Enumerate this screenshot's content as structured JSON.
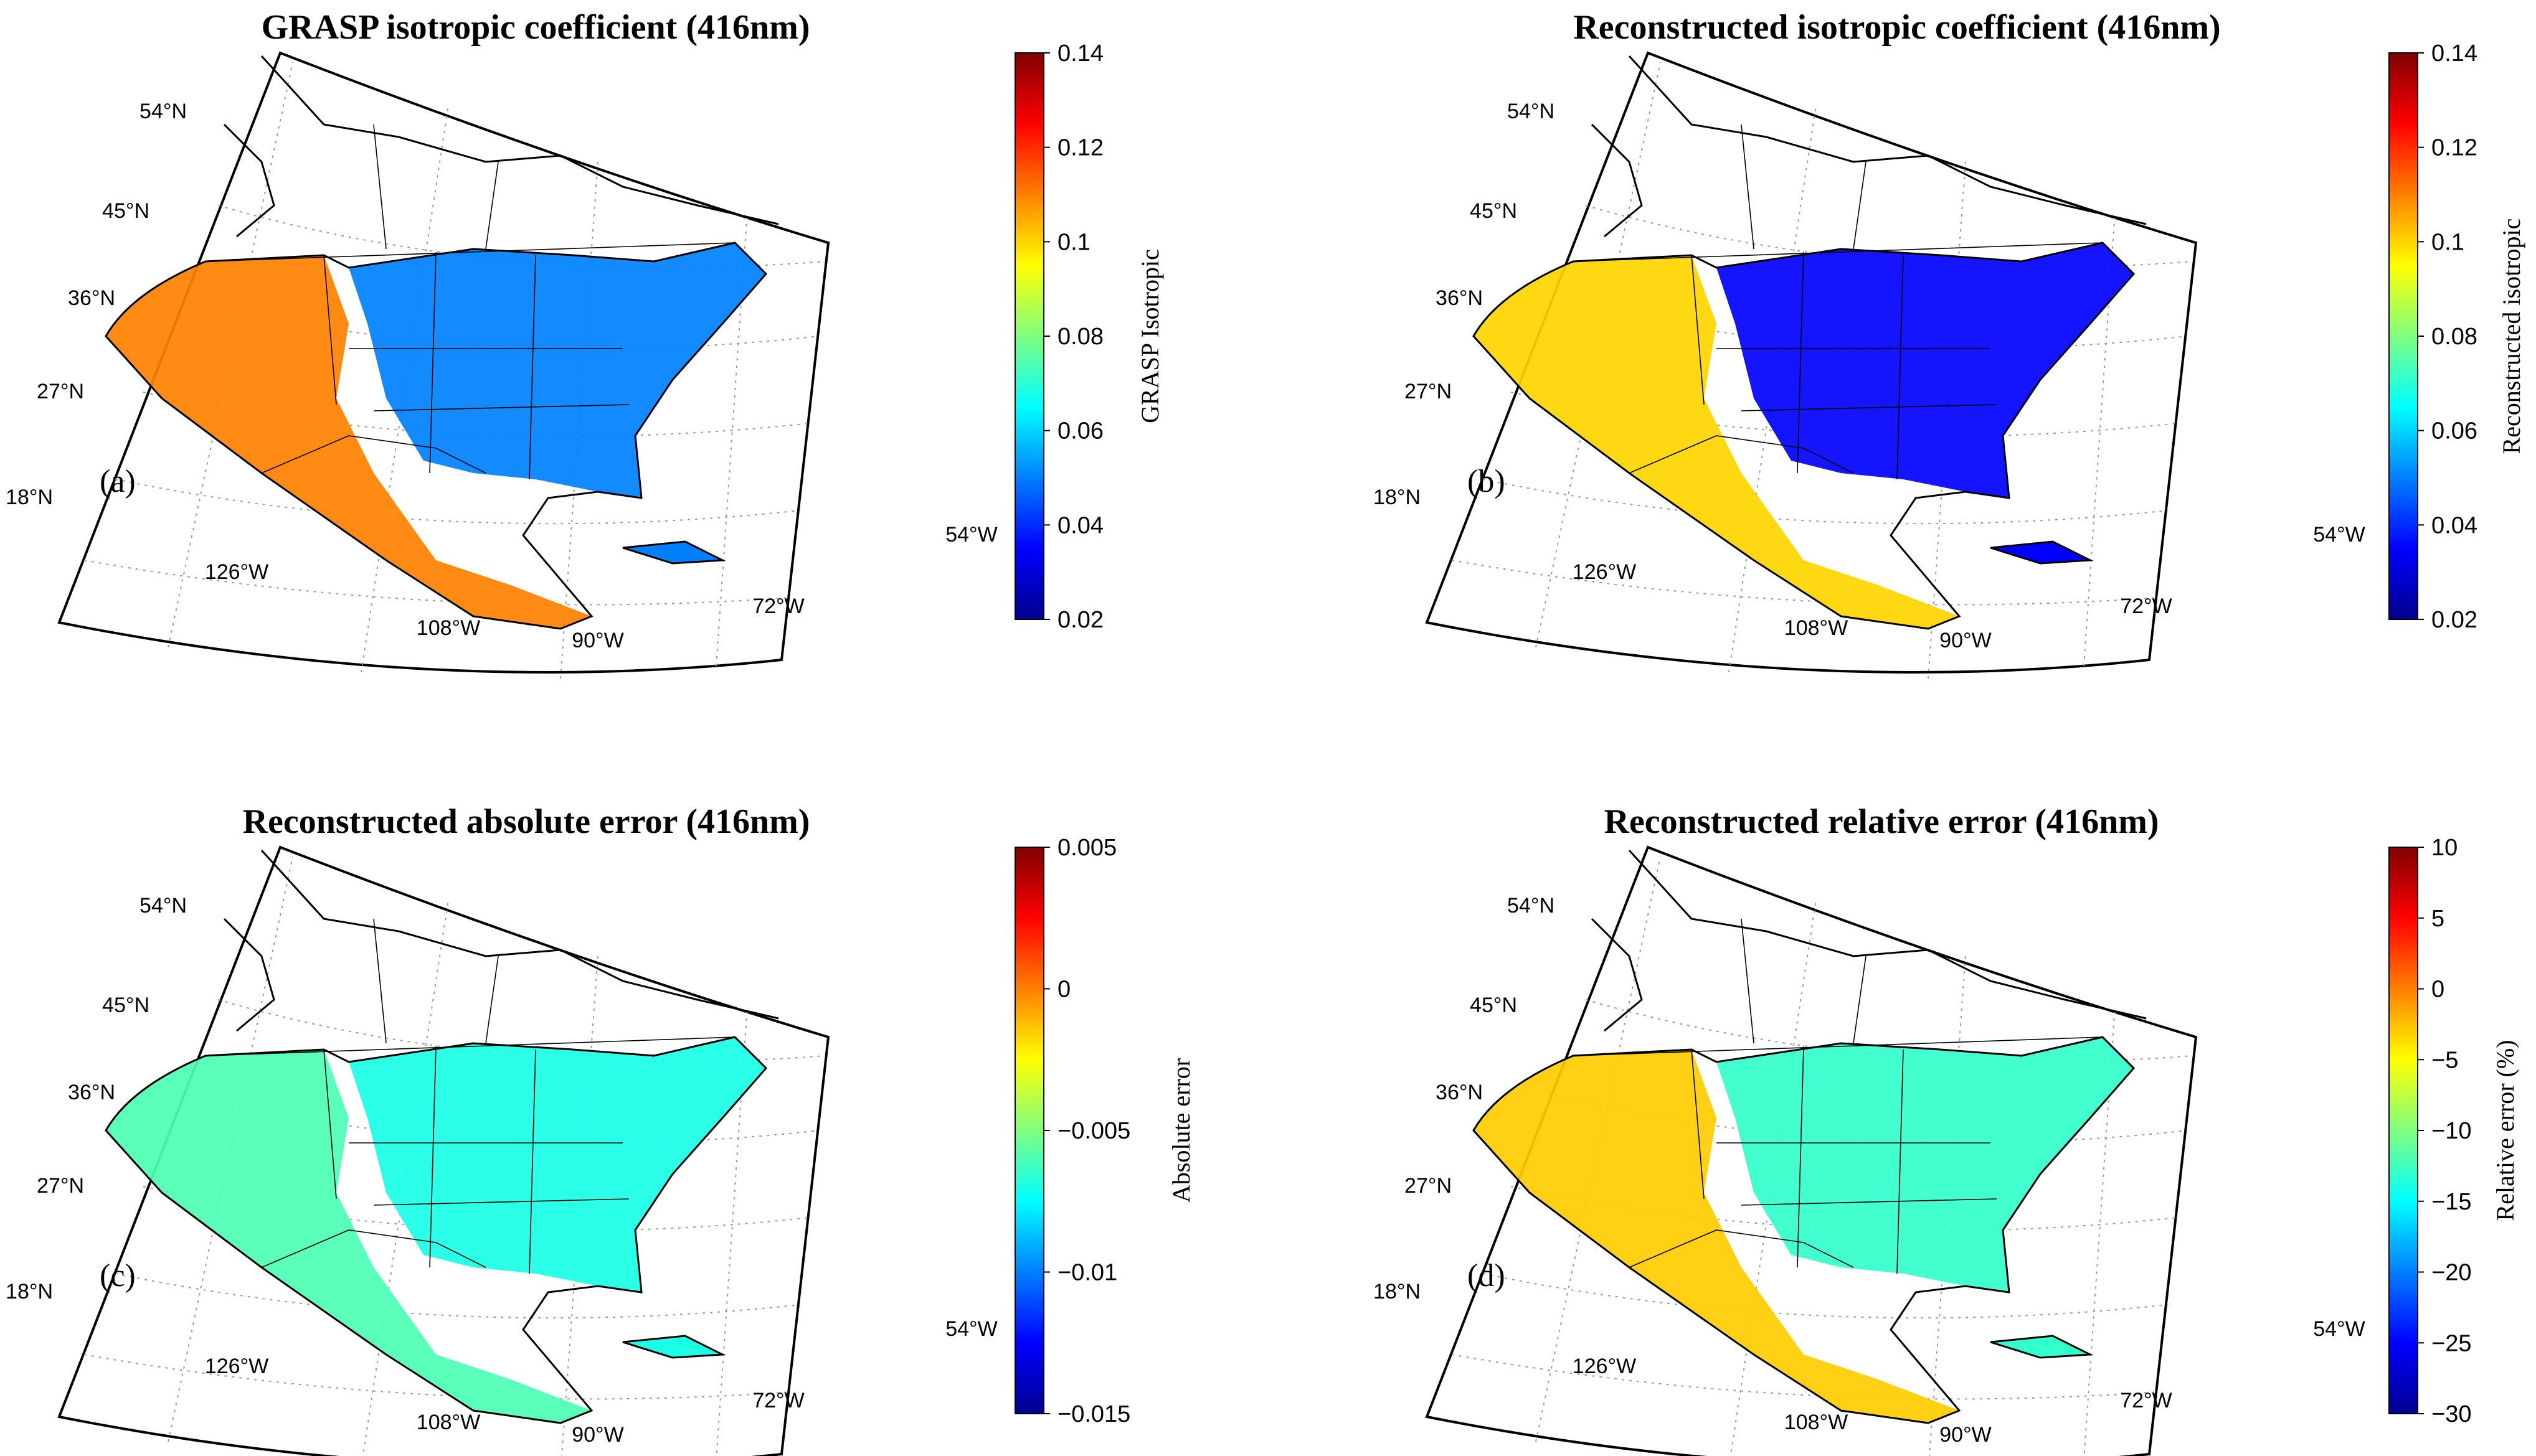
{
  "figure": {
    "panels": [
      {
        "id": "a",
        "letter": "(a)",
        "title": "GRASP isotropic coefficient (416nm)",
        "colorbar_label": "GRASP Isotropic",
        "ticks": [
          "0.14",
          "0.12",
          "0.1",
          "0.08",
          "0.06",
          "0.04",
          "0.02"
        ],
        "range": [
          0.02,
          0.14
        ],
        "west_mean": 0.11,
        "east_mean": 0.05
      },
      {
        "id": "b",
        "letter": "(b)",
        "title": "Reconstructed isotropic coefficient (416nm)",
        "colorbar_label": "Reconstructed isotropic",
        "ticks": [
          "0.14",
          "0.12",
          "0.1",
          "0.08",
          "0.06",
          "0.04",
          "0.02"
        ],
        "range": [
          0.02,
          0.14
        ],
        "west_mean": 0.1,
        "east_mean": 0.035
      },
      {
        "id": "c",
        "letter": "(c)",
        "title": "Reconstructed absolute error (416nm)",
        "colorbar_label": "Absolute error",
        "ticks": [
          "0.005",
          "0",
          "−0.005",
          "−0.01",
          "−0.015"
        ],
        "range": [
          -0.015,
          0.005
        ],
        "west_mean": -0.006,
        "east_mean": -0.007
      },
      {
        "id": "d",
        "letter": "(d)",
        "title": "Reconstructed relative error (416nm)",
        "colorbar_label": "Relative error (%)",
        "ticks": [
          "10",
          "5",
          "0",
          "−5",
          "−10",
          "−15",
          "−20",
          "−25",
          "−30"
        ],
        "range": [
          -30,
          10
        ],
        "west_mean": -3,
        "east_mean": -13
      }
    ],
    "lat_labels": [
      "54°N",
      "45°N",
      "36°N",
      "27°N",
      "18°N"
    ],
    "lon_labels": [
      "126°W",
      "108°W",
      "90°W",
      "72°W",
      "54°W"
    ],
    "colormap": [
      "#00008f",
      "#0000ff",
      "#0080ff",
      "#00ffff",
      "#80ff80",
      "#ffff00",
      "#ff8000",
      "#ff0000",
      "#800000"
    ]
  }
}
